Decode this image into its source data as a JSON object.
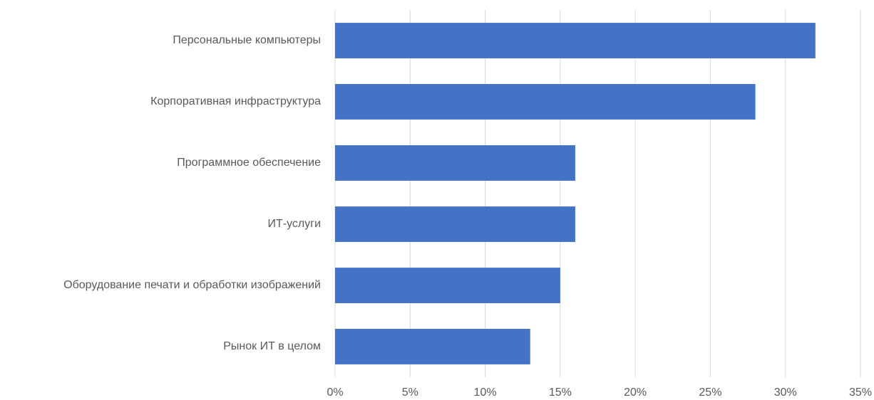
{
  "chart_data": {
    "type": "hbar",
    "categories": [
      "Персональные компьютеры",
      "Корпоративная инфраструктура",
      "Программное обеспечение",
      "ИТ-услуги",
      "Оборудование печати и обработки изображений",
      "Рынок ИТ в целом"
    ],
    "values": [
      32,
      28,
      16,
      16,
      15,
      13
    ],
    "color": "#4472c4",
    "xlim": [
      0,
      35
    ],
    "xticks": [
      {
        "value": 0,
        "label": "0%"
      },
      {
        "value": 5,
        "label": "5%"
      },
      {
        "value": 10,
        "label": "10%"
      },
      {
        "value": 15,
        "label": "15%"
      },
      {
        "value": 20,
        "label": "20%"
      },
      {
        "value": 25,
        "label": "25%"
      },
      {
        "value": 30,
        "label": "30%"
      },
      {
        "value": 35,
        "label": "35%"
      }
    ],
    "grid": true
  }
}
